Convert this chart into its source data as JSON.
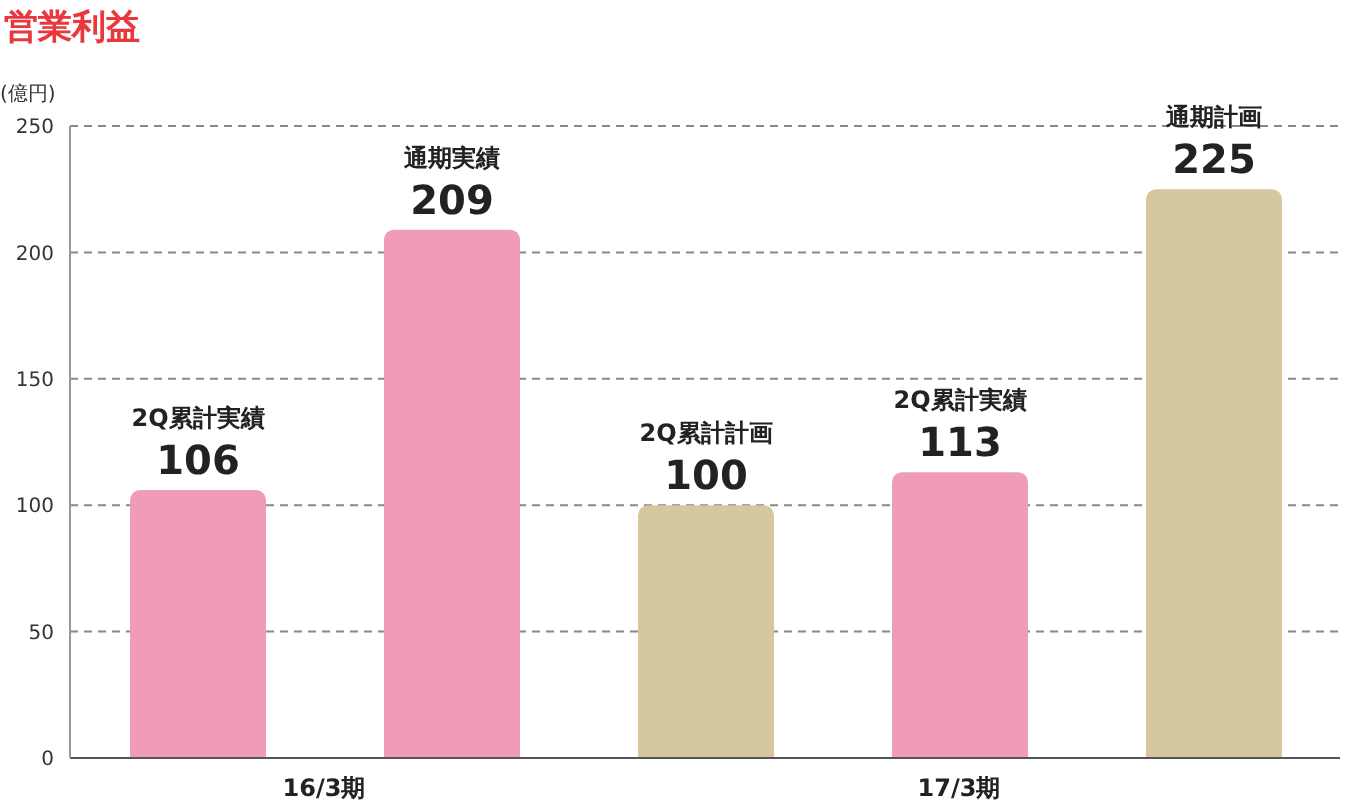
{
  "chart_data": {
    "type": "bar",
    "title": "営業利益",
    "ylabel": "(億円)",
    "categories": [
      "2Q累計実績",
      "通期実績",
      "2Q累計計画",
      "2Q累計実績",
      "通期計画"
    ],
    "values": [
      106,
      209,
      100,
      113,
      225
    ],
    "colors": [
      "#f19cb7",
      "#f19cb7",
      "#d5c89e",
      "#f19cb7",
      "#d5c89e"
    ],
    "ylim": [
      0,
      250
    ],
    "yticks": [
      0,
      50,
      100,
      150,
      200,
      250
    ],
    "grid": "y",
    "data_labels": true,
    "annotations": [
      "16/3期",
      "17/3期"
    ]
  }
}
